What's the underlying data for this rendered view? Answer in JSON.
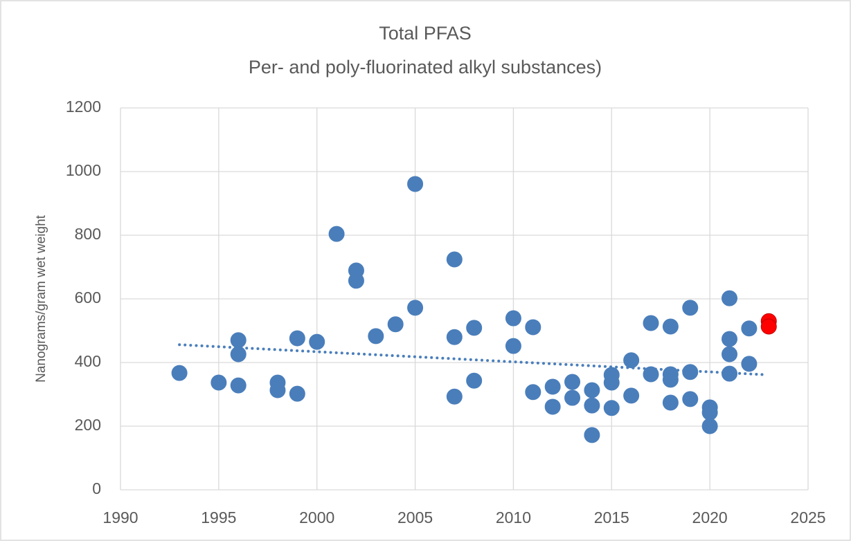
{
  "chart_data": {
    "type": "scatter",
    "title": "Total PFAS",
    "subtitle": "Per- and poly-fluorinated alkyl substances)",
    "y_label": "Nanograms/gram wet weight",
    "xlim": [
      1990,
      2025
    ],
    "xticks": [
      1990,
      1995,
      2000,
      2005,
      2010,
      2015,
      2020,
      2025
    ],
    "ylim": [
      0,
      1200
    ],
    "yticks": [
      0,
      200,
      400,
      600,
      800,
      1000,
      1200
    ],
    "grid": true,
    "series": [
      {
        "color": "#4a7ebb",
        "x": [
          1993,
          1995,
          1996,
          1996,
          1996,
          1998,
          1998,
          1999,
          1999,
          2000,
          2001,
          2002,
          2002,
          2003,
          2004,
          2005,
          2005,
          2007,
          2007,
          2007,
          2008,
          2008,
          2010,
          2010,
          2011,
          2011,
          2012,
          2012,
          2013,
          2013,
          2014,
          2014,
          2014,
          2015,
          2015,
          2015,
          2016,
          2016,
          2017,
          2017,
          2018,
          2018,
          2018,
          2018,
          2019,
          2019,
          2019,
          2020,
          2020,
          2020,
          2021,
          2021,
          2021,
          2021,
          2022,
          2022
        ],
        "y": [
          367,
          337,
          470,
          426,
          328,
          337,
          313,
          476,
          302,
          465,
          804,
          689,
          657,
          483,
          520,
          961,
          572,
          724,
          480,
          293,
          509,
          343,
          539,
          452,
          511,
          307,
          324,
          261,
          339,
          289,
          313,
          265,
          172,
          361,
          337,
          257,
          407,
          296,
          524,
          363,
          513,
          363,
          346,
          274,
          572,
          370,
          285,
          259,
          243,
          200,
          602,
          474,
          426,
          365,
          507,
          396
        ]
      },
      {
        "color": "#ff0000",
        "x": [
          2023,
          2023
        ],
        "y": [
          530,
          513
        ]
      }
    ],
    "trendline": {
      "color": "#4a7ebb",
      "x": [
        1993,
        2022.7
      ],
      "y": [
        456,
        362
      ]
    }
  }
}
